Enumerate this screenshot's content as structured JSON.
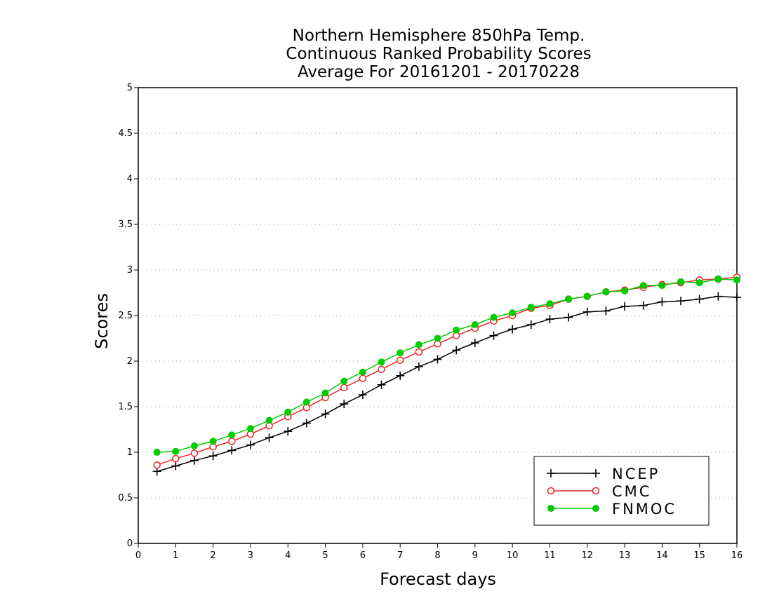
{
  "chart_data": {
    "type": "line",
    "title_lines": [
      "Northern Hemisphere 850hPa Temp.",
      "Continuous Ranked Probability Scores",
      "Average For 20161201 - 20170228"
    ],
    "xlabel": "Forecast days",
    "ylabel": "Scores",
    "xlim": [
      0,
      16
    ],
    "ylim": [
      0,
      5
    ],
    "x_ticks": [
      "0",
      "1",
      "2",
      "3",
      "4",
      "5",
      "6",
      "7",
      "8",
      "9",
      "10",
      "11",
      "12",
      "13",
      "14",
      "15",
      "16"
    ],
    "y_ticks": [
      "0",
      "0.5",
      "1",
      "1.5",
      "2",
      "2.5",
      "3",
      "3.5",
      "4",
      "4.5",
      "5"
    ],
    "grid": true,
    "legend_position": "bottom-right",
    "x": [
      0.5,
      1,
      1.5,
      2,
      2.5,
      3,
      3.5,
      4,
      4.5,
      5,
      5.5,
      6,
      6.5,
      7,
      7.5,
      8,
      8.5,
      9,
      9.5,
      10,
      10.5,
      11,
      11.5,
      12,
      12.5,
      13,
      13.5,
      14,
      14.5,
      15,
      15.5,
      16
    ],
    "series": [
      {
        "name": "NCEP",
        "color": "#000000",
        "marker": "plus",
        "values": [
          0.79,
          0.85,
          0.91,
          0.96,
          1.02,
          1.08,
          1.16,
          1.23,
          1.32,
          1.42,
          1.53,
          1.63,
          1.74,
          1.84,
          1.94,
          2.02,
          2.12,
          2.2,
          2.28,
          2.35,
          2.4,
          2.46,
          2.48,
          2.54,
          2.55,
          2.6,
          2.61,
          2.65,
          2.66,
          2.68,
          2.71,
          2.7
        ]
      },
      {
        "name": "CMC",
        "color": "#ee2222",
        "marker": "open-circle",
        "values": [
          0.86,
          0.93,
          0.99,
          1.06,
          1.12,
          1.2,
          1.29,
          1.39,
          1.49,
          1.6,
          1.71,
          1.81,
          1.91,
          2.01,
          2.1,
          2.19,
          2.28,
          2.36,
          2.44,
          2.5,
          2.58,
          2.61,
          2.68,
          2.71,
          2.76,
          2.78,
          2.81,
          2.84,
          2.86,
          2.89,
          2.9,
          2.92
        ]
      },
      {
        "name": "FNMOC",
        "color": "#00cc00",
        "marker": "filled-circle",
        "values": [
          1.0,
          1.01,
          1.07,
          1.12,
          1.19,
          1.26,
          1.35,
          1.44,
          1.55,
          1.65,
          1.78,
          1.88,
          1.99,
          2.09,
          2.18,
          2.25,
          2.34,
          2.4,
          2.48,
          2.53,
          2.59,
          2.63,
          2.68,
          2.71,
          2.76,
          2.77,
          2.83,
          2.83,
          2.87,
          2.86,
          2.9,
          2.89
        ]
      }
    ]
  }
}
